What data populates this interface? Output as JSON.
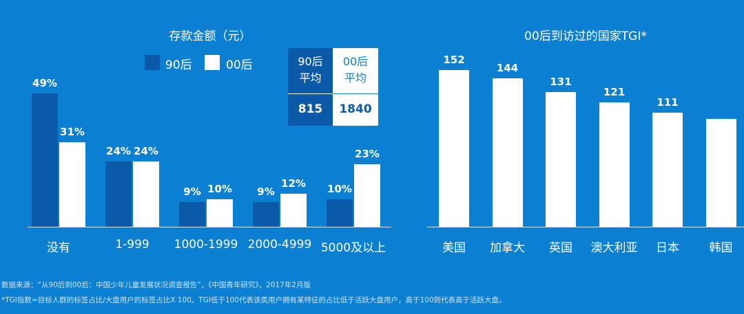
{
  "colors": {
    "background": "#0b7fd1",
    "series_90": "#0b5aa8",
    "series_00": "#ffffff"
  },
  "chart_data": [
    {
      "type": "bar",
      "title": "存款金额（元）",
      "categories": [
        "没有",
        "1-999",
        "1000-1999",
        "2000-4999",
        "5000及以上"
      ],
      "series": [
        {
          "name": "90后",
          "values": [
            49,
            24,
            9,
            9,
            10
          ],
          "labels": [
            "49%",
            "24%",
            "9%",
            "9%",
            "10%"
          ]
        },
        {
          "name": "00后",
          "values": [
            31,
            24,
            10,
            12,
            23
          ],
          "labels": [
            "31%",
            "24%",
            "10%",
            "12%",
            "23%"
          ]
        }
      ],
      "unit": "%",
      "legend": "top",
      "average_table": {
        "h90": [
          "90后",
          "平均"
        ],
        "h00": [
          "00后",
          "平均"
        ],
        "values": [
          "815",
          "1840"
        ]
      }
    },
    {
      "type": "bar",
      "title": "00后到访过的国家TGI*",
      "categories": [
        "美国",
        "加拿大",
        "英国",
        "澳大利亚",
        "日本",
        "韩国"
      ],
      "values": [
        152,
        144,
        131,
        121,
        111,
        105
      ],
      "labels": [
        "152",
        "144",
        "131",
        "121",
        "111",
        ""
      ]
    }
  ],
  "footnotes": [
    "数据来源：“从90后到00后：中国少年儿童发展状况调查报告”，《中国青年研究》，2017年2月版",
    "*TGI指数=目标人群的标签占比/大盘用户的标签占比X 100。TGI低于100代表该类用户拥有某特征的占比低于活跃大盘用户，高于100则代表高于活跃大盘。"
  ]
}
